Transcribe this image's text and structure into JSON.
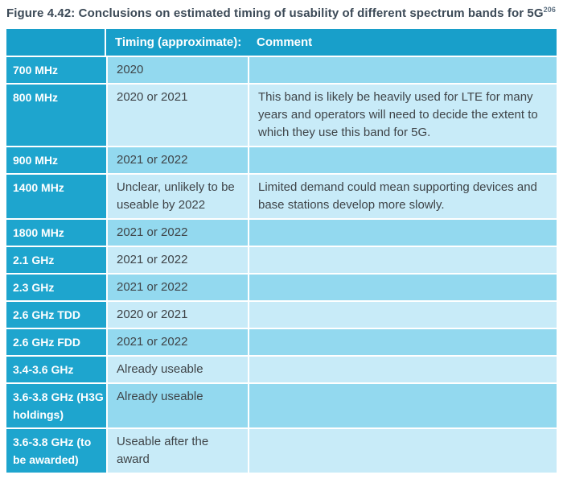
{
  "title": {
    "text": "Figure 4.42: Conclusions on estimated timing of usability of different spectrum bands for 5G",
    "footnote_ref": "206"
  },
  "colors": {
    "header_teal": "#189FCA",
    "band_column_teal": "#1EA5CE",
    "row_shade_a": "#93D9EF",
    "row_shade_b": "#C8EBF8",
    "title_text": "#3C4A57",
    "footnote_text": "#5E7182",
    "body_text": "#3F4448",
    "header_text": "#FFFFFF"
  },
  "table": {
    "header": {
      "band": "",
      "timing": "Timing (approximate):",
      "comment": "Comment"
    },
    "rows": [
      {
        "band": "700 MHz",
        "timing": "2020",
        "comment": "",
        "shade": "a"
      },
      {
        "band": "800 MHz",
        "timing": "2020 or 2021",
        "comment": "This band is likely be heavily used for LTE for many years and operators will need to decide the extent to which they use this band for 5G.",
        "shade": "b"
      },
      {
        "band": "900 MHz",
        "timing": "2021 or 2022",
        "comment": "",
        "shade": "a"
      },
      {
        "band": "1400 MHz",
        "timing": "Unclear, unlikely to be useable by 2022",
        "comment": "Limited demand could mean supporting devices and base stations develop more slowly.",
        "shade": "b"
      },
      {
        "band": "1800 MHz",
        "timing": "2021 or 2022",
        "comment": "",
        "shade": "a"
      },
      {
        "band": "2.1 GHz",
        "timing": "2021 or 2022",
        "comment": "",
        "shade": "b"
      },
      {
        "band": "2.3 GHz",
        "timing": "2021 or 2022",
        "comment": "",
        "shade": "a"
      },
      {
        "band": "2.6 GHz TDD",
        "timing": "2020 or 2021",
        "comment": "",
        "shade": "b"
      },
      {
        "band": "2.6 GHz FDD",
        "timing": "2021 or 2022",
        "comment": "",
        "shade": "a"
      },
      {
        "band": "3.4-3.6 GHz",
        "timing": "Already useable",
        "comment": "",
        "shade": "b"
      },
      {
        "band": "3.6-3.8 GHz (H3G holdings)",
        "timing": "Already useable",
        "comment": "",
        "shade": "a"
      },
      {
        "band": "3.6-3.8 GHz (to be awarded)",
        "timing": "Useable after the award",
        "comment": "",
        "shade": "b"
      }
    ]
  }
}
